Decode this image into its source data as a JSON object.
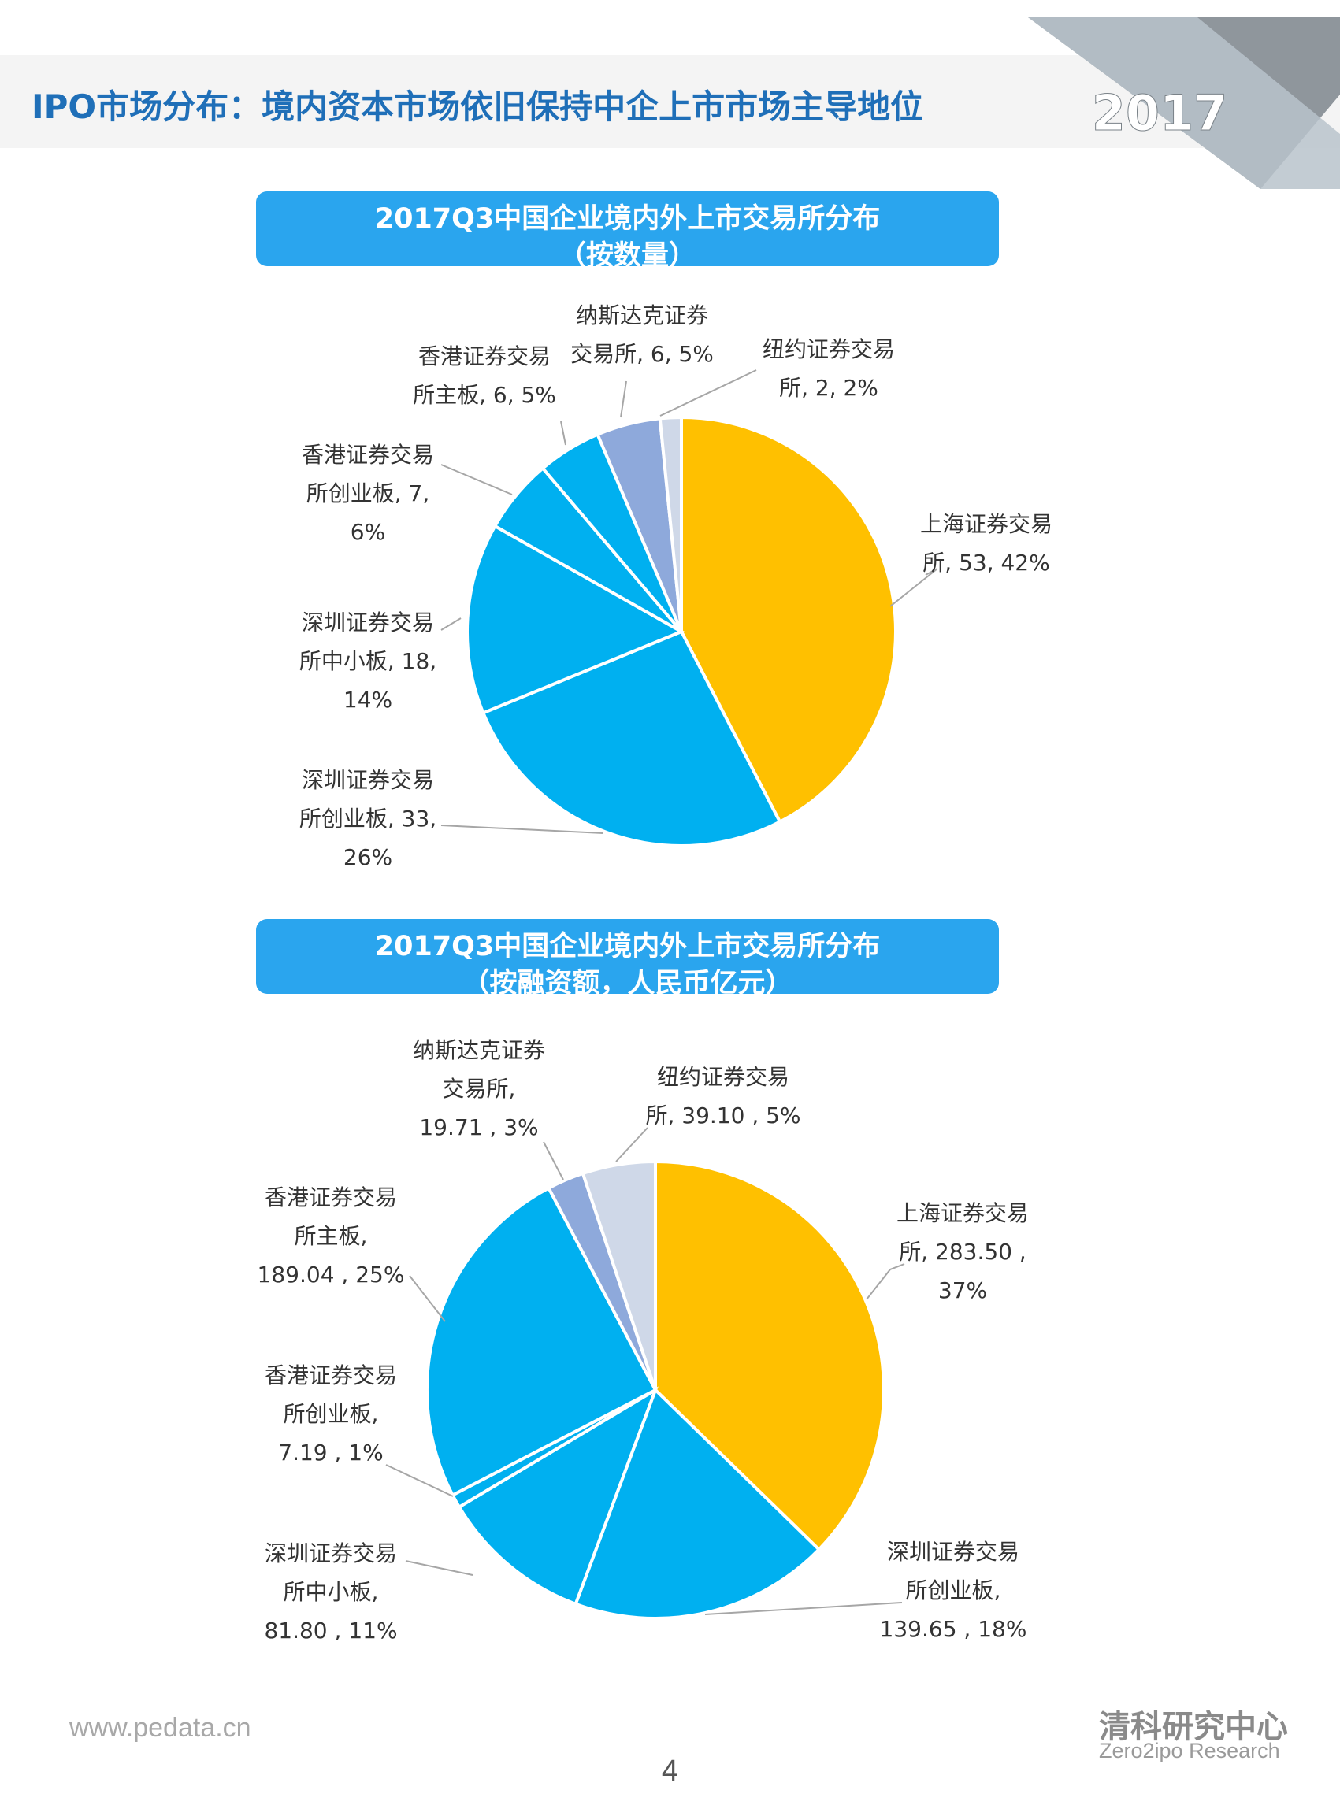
{
  "header": {
    "title": "IPO市场分布：境内资本市场依旧保持中企上市市场主导地位",
    "year": "2017"
  },
  "colors": {
    "title": "#1f6fb8",
    "box": "#2aa5ee",
    "gold": "#ffc000",
    "blue": "#00b0f0",
    "slate": "#8ea9db",
    "pale": "#cfd8e8"
  },
  "chart_data": [
    {
      "type": "pie",
      "title_lines": [
        "2017Q3中国企业境内外上市交易所分布",
        "（按数量）"
      ],
      "slices": [
        {
          "label_lines": [
            "上海证券交易",
            "所, 53, 42%"
          ],
          "value": 53,
          "percent": "42%",
          "color": "#ffc000"
        },
        {
          "label_lines": [
            "深圳证券交易",
            "所创业板, 33,",
            "26%"
          ],
          "value": 33,
          "percent": "26%",
          "color": "#00b0f0"
        },
        {
          "label_lines": [
            "深圳证券交易",
            "所中小板, 18,",
            "14%"
          ],
          "value": 18,
          "percent": "14%",
          "color": "#00b0f0"
        },
        {
          "label_lines": [
            "香港证券交易",
            "所创业板, 7,",
            "6%"
          ],
          "value": 7,
          "percent": "6%",
          "color": "#00b0f0"
        },
        {
          "label_lines": [
            "香港证券交易",
            "所主板, 6, 5%"
          ],
          "value": 6,
          "percent": "5%",
          "color": "#00b0f0"
        },
        {
          "label_lines": [
            "纳斯达克证券",
            "交易所, 6, 5%"
          ],
          "value": 6,
          "percent": "5%",
          "color": "#8ea9db"
        },
        {
          "label_lines": [
            "纽约证券交易",
            "所, 2, 2%"
          ],
          "value": 2,
          "percent": "2%",
          "color": "#cfd8e8"
        }
      ]
    },
    {
      "type": "pie",
      "title_lines": [
        "2017Q3中国企业境内外上市交易所分布",
        "（按融资额，人民币亿元）"
      ],
      "slices": [
        {
          "label_lines": [
            "上海证券交易",
            "所, 283.50 ,",
            "37%"
          ],
          "value": 283.5,
          "percent": "37%",
          "color": "#ffc000"
        },
        {
          "label_lines": [
            "深圳证券交易",
            "所创业板,",
            "139.65 , 18%"
          ],
          "value": 139.65,
          "percent": "18%",
          "color": "#00b0f0"
        },
        {
          "label_lines": [
            "深圳证券交易",
            "所中小板,",
            "81.80 , 11%"
          ],
          "value": 81.8,
          "percent": "11%",
          "color": "#00b0f0"
        },
        {
          "label_lines": [
            "香港证券交易",
            "所创业板,",
            "7.19 , 1%"
          ],
          "value": 7.19,
          "percent": "1%",
          "color": "#00b0f0"
        },
        {
          "label_lines": [
            "香港证券交易",
            "所主板,",
            "189.04 , 25%"
          ],
          "value": 189.04,
          "percent": "25%",
          "color": "#00b0f0"
        },
        {
          "label_lines": [
            "纳斯达克证券",
            "交易所,",
            "19.71 , 3%"
          ],
          "value": 19.71,
          "percent": "3%",
          "color": "#8ea9db"
        },
        {
          "label_lines": [
            "纽约证券交易",
            "所, 39.10 , 5%"
          ],
          "value": 39.1,
          "percent": "5%",
          "color": "#cfd8e8"
        }
      ]
    }
  ],
  "footer": {
    "url": "www.pedata.cn",
    "page_number": "4",
    "brand_cn": "清科研究中心",
    "brand_en": "Zero2ipo Research"
  }
}
